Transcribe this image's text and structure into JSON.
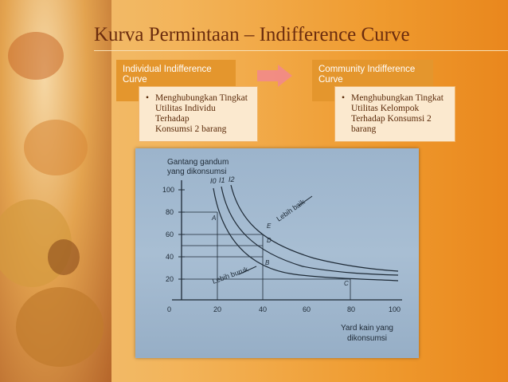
{
  "slide": {
    "title": "Kurva Permintaan – Indifference Curve"
  },
  "left_box": {
    "heading_line1": "Individual Indifference",
    "heading_line2": "Curve",
    "bullet": "•",
    "body_line1": "Menghubungkan Tingkat",
    "body_line2": "Utilitas Individu Terhadap",
    "body_line3": "Konsumsi 2 barang"
  },
  "right_box": {
    "heading_line1": "Community Indifference",
    "heading_line2": "Curve",
    "bullet": "•",
    "body_line1": "Menghubungkan Tingkat",
    "body_line2": "Utilitas Kelompok",
    "body_line3": "Terhadap Konsumsi 2",
    "body_line4": "barang"
  },
  "graph": {
    "ylabel_line1": "Gantang gandum",
    "ylabel_line2": "yang dikonsumsi",
    "xlabel_line1": "Yard kain yang",
    "xlabel_line2": "dikonsumsi",
    "y_ticks": [
      "100",
      "80",
      "60",
      "40",
      "20"
    ],
    "x_ticks": [
      "0",
      "20",
      "40",
      "60",
      "80",
      "100"
    ],
    "curve_labels": [
      "I0",
      "I1",
      "I2"
    ],
    "point_labels": [
      "A",
      "E",
      "D",
      "B",
      "C"
    ],
    "lebih_baik": "Lebih baik",
    "lebih_buruk": "Lebih buruk"
  },
  "colors": {
    "title": "#6b2c0e",
    "box_header": "#e4962d",
    "box_body": "#fbe9cf",
    "arrow": "#f28a8a"
  }
}
